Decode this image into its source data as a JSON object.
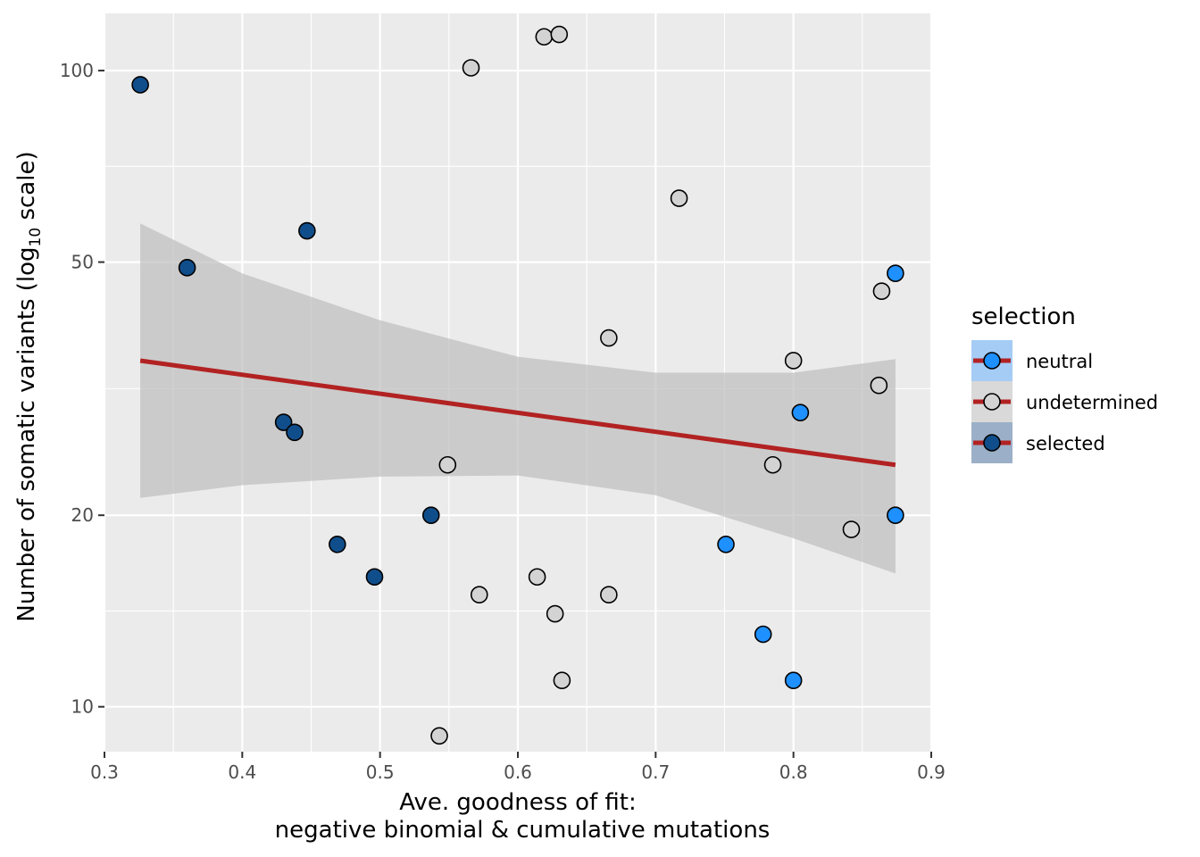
{
  "chart_data": {
    "type": "scatter",
    "title": "",
    "xlabel_lines": [
      "Ave. goodness of fit:",
      "negative binomial & cumulative mutations"
    ],
    "ylabel": {
      "main": "Number of somatic variants (log",
      "sub": "10",
      "tail": " scale)"
    },
    "xlim": [
      0.3,
      0.9
    ],
    "ylim": [
      8.5,
      123
    ],
    "y_scale": "log10",
    "grid": true,
    "x_ticks": [
      0.3,
      0.4,
      0.5,
      0.6,
      0.7,
      0.8,
      0.9
    ],
    "x_tick_labels": [
      "0.3",
      "0.4",
      "0.5",
      "0.6",
      "0.7",
      "0.8",
      "0.9"
    ],
    "y_ticks": [
      10,
      20,
      50,
      100
    ],
    "y_tick_labels": [
      "10",
      "20",
      "50",
      "100"
    ],
    "legend": {
      "title": "selection",
      "position": "right",
      "entries": [
        {
          "key": "neutral",
          "label": "neutral"
        },
        {
          "key": "undetermined",
          "label": "undetermined"
        },
        {
          "key": "selected",
          "label": "selected"
        }
      ]
    },
    "colors": {
      "neutral": "#1e90ff",
      "undetermined": "#d3d3d3",
      "selected": "#104e8b",
      "trend": "#b22222",
      "band": "#bebebe",
      "panel": "#ebebeb",
      "grid": "#ffffff"
    },
    "series": [
      {
        "name": "neutral",
        "points": [
          [
            0.874,
            48
          ],
          [
            0.805,
            29
          ],
          [
            0.874,
            20
          ],
          [
            0.751,
            18
          ],
          [
            0.778,
            13
          ],
          [
            0.8,
            11
          ]
        ]
      },
      {
        "name": "undetermined",
        "points": [
          [
            0.619,
            113
          ],
          [
            0.63,
            114
          ],
          [
            0.566,
            101
          ],
          [
            0.717,
            63
          ],
          [
            0.864,
            45
          ],
          [
            0.666,
            38
          ],
          [
            0.8,
            35
          ],
          [
            0.862,
            32
          ],
          [
            0.549,
            24
          ],
          [
            0.785,
            24
          ],
          [
            0.842,
            19
          ],
          [
            0.614,
            16
          ],
          [
            0.572,
            15
          ],
          [
            0.666,
            15
          ],
          [
            0.627,
            14
          ],
          [
            0.632,
            11
          ],
          [
            0.543,
            9
          ]
        ]
      },
      {
        "name": "selected",
        "points": [
          [
            0.326,
            95
          ],
          [
            0.447,
            56
          ],
          [
            0.36,
            49
          ],
          [
            0.43,
            28
          ],
          [
            0.438,
            27
          ],
          [
            0.537,
            20
          ],
          [
            0.469,
            18
          ],
          [
            0.496,
            16
          ]
        ]
      }
    ],
    "trend_line": {
      "x": [
        0.326,
        0.874
      ],
      "y": [
        35,
        24
      ]
    },
    "confidence_band": {
      "x": [
        0.326,
        0.4,
        0.5,
        0.6,
        0.7,
        0.8,
        0.874
      ],
      "upper": [
        57.5,
        48,
        40.5,
        35.5,
        33.5,
        33.5,
        35.2
      ],
      "lower": [
        21.3,
        22.3,
        23,
        23.1,
        21.5,
        18.4,
        16.2
      ]
    }
  }
}
